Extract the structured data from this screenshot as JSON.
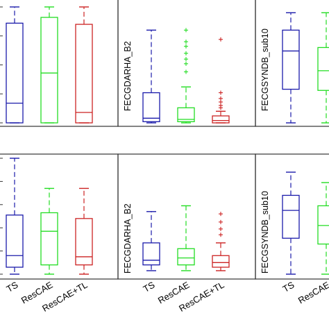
{
  "chart_data": [
    {
      "type": "box",
      "ylabel": "",
      "categories": [
        "TS",
        "ResCAE",
        "ResCAE+TL"
      ],
      "series": [
        {
          "category": "TS",
          "color": "#1a1aaa",
          "whisker_low": 0.0,
          "q1": 0.0,
          "median": 0.17,
          "q3": 0.86,
          "whisker_high": 1.0,
          "outliers": []
        },
        {
          "category": "ResCAE",
          "color": "#22dd22",
          "whisker_low": 0.0,
          "q1": 0.0,
          "median": 0.43,
          "q3": 0.91,
          "whisker_high": 1.0,
          "outliers": []
        },
        {
          "category": "ResCAE+TL",
          "color": "#cc2222",
          "whisker_low": 0.0,
          "q1": 0.0,
          "median": 0.09,
          "q3": 0.85,
          "whisker_high": 1.0,
          "outliers": []
        }
      ]
    },
    {
      "type": "box",
      "ylabel": "FECGDARHA_B2",
      "categories": [
        "TS",
        "ResCAE",
        "ResCAE+TL"
      ],
      "series": [
        {
          "category": "TS",
          "color": "#1a1aaa",
          "whisker_low": 0.0,
          "q1": 0.01,
          "median": 0.04,
          "q3": 0.26,
          "whisker_high": 0.8,
          "outliers": []
        },
        {
          "category": "ResCAE",
          "color": "#22dd22",
          "whisker_low": 0.0,
          "q1": 0.01,
          "median": 0.03,
          "q3": 0.13,
          "whisker_high": 0.31,
          "outliers": [
            0.44,
            0.51,
            0.55,
            0.6,
            0.66,
            0.7,
            0.8
          ]
        },
        {
          "category": "ResCAE+TL",
          "color": "#cc2222",
          "whisker_low": 0.0,
          "q1": 0.0,
          "median": 0.02,
          "q3": 0.06,
          "whisker_high": 0.1,
          "outliers": [
            0.13,
            0.15,
            0.18,
            0.21,
            0.26,
            0.72
          ]
        }
      ]
    },
    {
      "type": "box",
      "ylabel": "FECGSYNDB_sub10",
      "categories": [
        "TS",
        "ResCAE"
      ],
      "series": [
        {
          "category": "TS",
          "color": "#1a1aaa",
          "whisker_low": 0.0,
          "q1": 0.29,
          "median": 0.62,
          "q3": 0.8,
          "whisker_high": 0.95,
          "outliers": []
        },
        {
          "category": "ResCAE",
          "color": "#22dd22",
          "whisker_low": 0.0,
          "q1": 0.28,
          "median": 0.45,
          "q3": 0.65,
          "whisker_high": 0.95,
          "outliers": []
        }
      ]
    },
    {
      "type": "box",
      "ylabel": "",
      "categories": [
        "TS",
        "ResCAE",
        "ResCAE+TL"
      ],
      "series": [
        {
          "category": "TS",
          "color": "#1a1aaa",
          "whisker_low": 0.0,
          "q1": 0.06,
          "median": 0.16,
          "q3": 0.51,
          "whisker_high": 1.0,
          "outliers": []
        },
        {
          "category": "ResCAE",
          "color": "#22dd22",
          "whisker_low": 0.0,
          "q1": 0.08,
          "median": 0.37,
          "q3": 0.53,
          "whisker_high": 0.74,
          "outliers": []
        },
        {
          "category": "ResCAE+TL",
          "color": "#cc2222",
          "whisker_low": 0.0,
          "q1": 0.08,
          "median": 0.15,
          "q3": 0.48,
          "whisker_high": 0.74,
          "outliers": []
        }
      ]
    },
    {
      "type": "box",
      "ylabel": "FECGDARHA_B2",
      "categories": [
        "TS",
        "ResCAE",
        "ResCAE+TL"
      ],
      "series": [
        {
          "category": "TS",
          "color": "#1a1aaa",
          "whisker_low": 0.03,
          "q1": 0.08,
          "median": 0.12,
          "q3": 0.27,
          "whisker_high": 0.54,
          "outliers": []
        },
        {
          "category": "ResCAE",
          "color": "#22dd22",
          "whisker_low": 0.03,
          "q1": 0.08,
          "median": 0.14,
          "q3": 0.22,
          "whisker_high": 0.59,
          "outliers": []
        },
        {
          "category": "ResCAE+TL",
          "color": "#cc2222",
          "whisker_low": 0.03,
          "q1": 0.06,
          "median": 0.1,
          "q3": 0.16,
          "whisker_high": 0.27,
          "outliers": [
            0.34,
            0.39,
            0.45,
            0.52
          ]
        }
      ]
    },
    {
      "type": "box",
      "ylabel": "FECGSYNDB_sub10",
      "categories": [
        "TS",
        "ResCAE"
      ],
      "series": [
        {
          "category": "TS",
          "color": "#1a1aaa",
          "whisker_low": 0.0,
          "q1": 0.31,
          "median": 0.55,
          "q3": 0.68,
          "whisker_high": 0.88,
          "outliers": []
        },
        {
          "category": "ResCAE",
          "color": "#22dd22",
          "whisker_low": 0.0,
          "q1": 0.26,
          "median": 0.42,
          "q3": 0.59,
          "whisker_high": 0.79,
          "outliers": []
        }
      ]
    }
  ]
}
